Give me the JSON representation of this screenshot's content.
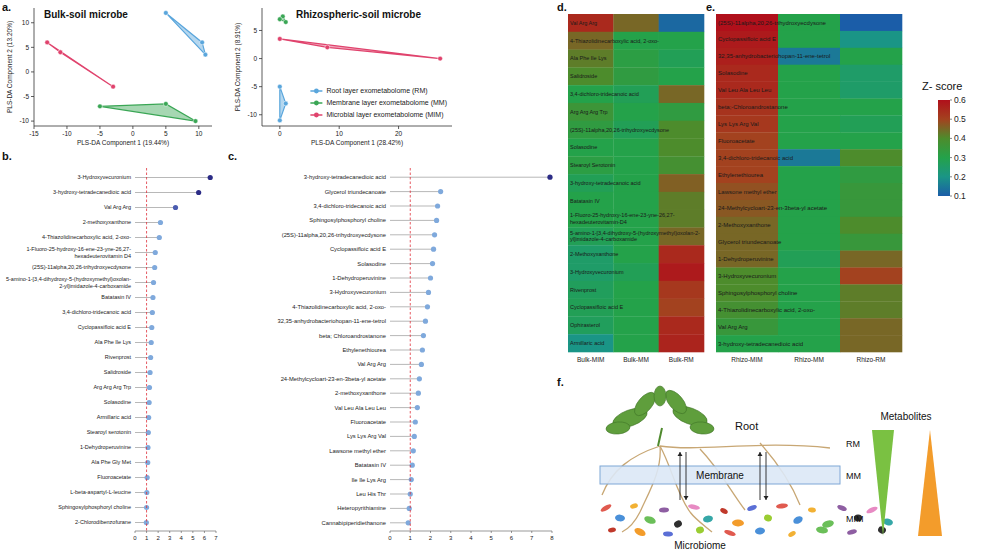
{
  "chart_data": [
    {
      "type": "scatter",
      "panel": "a.",
      "title": "Bulk-soil microbe",
      "x_label": "PLS-DA Component 1 (19.44%)",
      "y_label": "PLS-DA Component 2 (13.20%)",
      "xlim": [
        -15,
        12
      ],
      "ylim": [
        -11,
        13
      ],
      "xticks": [
        -15,
        -10,
        -5,
        0,
        5,
        10
      ],
      "yticks": [
        -10,
        -5,
        0,
        5,
        10
      ],
      "series": [
        {
          "color": "#5aa6dc",
          "x": [
            5,
            10.5,
            11
          ],
          "values": [
            12,
            6,
            3.5
          ]
        },
        {
          "color": "#3aa655",
          "x": [
            -5,
            5,
            9.5
          ],
          "values": [
            -7,
            -6.5,
            -10
          ]
        },
        {
          "color": "#e0436d",
          "x": [
            -13,
            -11,
            -3
          ],
          "values": [
            6,
            4,
            -3
          ]
        }
      ]
    },
    {
      "type": "scatter",
      "title": "Rhizospheric-soil microbe",
      "x_label": "PLS-DA Component 1 (28.42%)",
      "y_label": "PLS-DA Component 2 (8.91%)",
      "xlim": [
        -3,
        29
      ],
      "ylim": [
        -12,
        9
      ],
      "xticks": [
        0,
        10,
        20
      ],
      "yticks": [
        -10,
        -5,
        0,
        5
      ],
      "legend": "lower right",
      "series": [
        {
          "name": "Root layer exometabolome (RM)",
          "color": "#5aa6dc",
          "x": [
            0,
            1,
            0
          ],
          "values": [
            -5,
            -8,
            -11
          ]
        },
        {
          "name": "Membrane layer exometabolome (MM)",
          "color": "#3aa655",
          "x": [
            0.5,
            1,
            0
          ],
          "values": [
            7.5,
            6.5,
            7
          ]
        },
        {
          "name": "Microbial layer exometabolome (MIM)",
          "color": "#e0436d",
          "x": [
            0,
            8,
            27
          ],
          "values": [
            3.5,
            2,
            0
          ]
        }
      ]
    },
    {
      "type": "lollipop",
      "panel": "b.",
      "orientation": "horizontal",
      "categories": [
        "3-Hydroxyvecuronium",
        "3-hydroxy-tetradecanedioic acid",
        "Val Arg Arg",
        "2-methoxyxanthone",
        "4-Thiazolidinecarboxylic acid, 2-oxo-",
        "1-Fluoro-25-hydroxy-16-ene-23-yne-26,27-hexadeuterovitamin D4",
        "(25S)-11alpha,20,26-trihydroxyecdysone",
        "5-amino-1-[3,4-dihydroxy-5-(hydroxymethyl)oxolan-2-yl]imidazole-4-carboxamide",
        "Batatasin IV",
        "3,4-dichloro-tridecanoic acid",
        "Cyclopassifloic acid E",
        "Ala Phe Ile Lys",
        "Rivenprost",
        "Salidroside",
        "Arg Arg Arg Trp",
        "Solasodine",
        "Armillaric acid",
        "Stearoyl serotonin",
        "1-Dehydroperuvinine",
        "Ala Phe Gly Met",
        "Fluoroacetate",
        "L-beta-aspartyl-L-leucine",
        "Sphingosylphosphoryl choline",
        "2-Chlorodibenzofurane"
      ],
      "values": [
        6.5,
        5.5,
        3.5,
        2.2,
        2.1,
        1.75,
        1.7,
        1.6,
        1.55,
        1.5,
        1.45,
        1.4,
        1.35,
        1.3,
        1.25,
        1.22,
        1.18,
        1.15,
        1.12,
        1.1,
        1.05,
        1.02,
        1.0,
        0.98
      ],
      "xlim": [
        0,
        7
      ],
      "xticks": [
        0,
        1,
        2,
        3,
        4,
        5,
        6,
        7
      ],
      "reference_line": 1
    },
    {
      "type": "lollipop",
      "panel": "c.",
      "orientation": "horizontal",
      "categories": [
        "3-hydroxy-tetradecanedioic acid",
        "Glycerol triundecanoate",
        "3,4-dichloro-tridecanoic acid",
        "Sphingosylphosphoryl choline",
        "(25S)-11alpha,20,26-trihydroxyecdysone",
        "Cyclopassifloic acid E",
        "Solasodine",
        "1-Dehydroperuvinine",
        "3-Hydroxyvecuronium",
        "4-Thiazolidinecarboxylic acid, 2-oxo-",
        "32,35-anhydrobacteriohopan-11-ene-tetrol",
        "beta; Chloroandrostanone",
        "Ethylenethiourea",
        "Val Arg Arg",
        "24-Methylcycloart-23-en-3beta-yl acetate",
        "2-methoxyxanthone",
        "Val Leu Ala Leu Leu",
        "Fluoroacetate",
        "Lys Lys Arg Val",
        "Lawsone methyl ether",
        "Batatasin IV",
        "Ile Ile Lys Arg",
        "Leu His Thr",
        "Heteropyrithiamine",
        "Cannabipiperidiethanone"
      ],
      "values": [
        7.9,
        2.5,
        2.35,
        2.3,
        2.2,
        2.15,
        2.1,
        2.0,
        1.9,
        1.85,
        1.75,
        1.65,
        1.6,
        1.55,
        1.45,
        1.4,
        1.35,
        1.25,
        1.2,
        1.15,
        1.1,
        1.05,
        1.0,
        0.95,
        0.9
      ],
      "xlim": [
        0,
        8
      ],
      "xticks": [
        0,
        1,
        2,
        3,
        4,
        5,
        6,
        7,
        8
      ],
      "reference_line": 1
    },
    {
      "type": "heatmap",
      "panel": "d.",
      "x": [
        "Bulk-MIM",
        "Bulk-MM",
        "Bulk-RM"
      ],
      "y": [
        "Val Arg Arg",
        "4-Thiazolidinecarboxylic acid, 2-oxo-",
        "Ala Phe Ile Lys",
        "Salidroside",
        "3,4-dichloro-tridecanoic acid",
        "Arg Arg Arg Trp",
        "(25S)-11alpha,20,26-trihydroxyecdysone",
        "Solasodine",
        "Stearoyl Serotonin",
        "3-hydroxy-tetradecanoic acid",
        "Batatasin IV",
        "1-Fluoro-25-hydroxy-16-ene-23-yne-26,27-hexadeuterovitamin-D4",
        "5-amino-1-[3,4-dihydroxy-5-(hydroxymethyl)oxolan-2-yl]imidazole-4-carboxamide",
        "2-Methoxyxanthone",
        "3-Hydroxyvecuronium",
        "Rivenprost",
        "Cyclopassifloic acid E",
        "Ophirasterol",
        "Armillaric acid"
      ],
      "values": [
        [
          0.55,
          0.45,
          0.12
        ],
        [
          0.45,
          0.3,
          0.3
        ],
        [
          0.42,
          0.32,
          0.28
        ],
        [
          0.4,
          0.33,
          0.3
        ],
        [
          0.3,
          0.28,
          0.45
        ],
        [
          0.36,
          0.3,
          0.33
        ],
        [
          0.33,
          0.28,
          0.4
        ],
        [
          0.3,
          0.3,
          0.4
        ],
        [
          0.32,
          0.3,
          0.38
        ],
        [
          0.28,
          0.3,
          0.46
        ],
        [
          0.3,
          0.3,
          0.42
        ],
        [
          0.3,
          0.3,
          0.42
        ],
        [
          0.28,
          0.3,
          0.45
        ],
        [
          0.25,
          0.3,
          0.55
        ],
        [
          0.25,
          0.28,
          0.58
        ],
        [
          0.27,
          0.3,
          0.52
        ],
        [
          0.28,
          0.3,
          0.5
        ],
        [
          0.27,
          0.3,
          0.55
        ],
        [
          0.2,
          0.3,
          0.56
        ]
      ]
    },
    {
      "type": "heatmap",
      "panel": "e.",
      "x": [
        "Rhizo-MIM",
        "Rhizo-MM",
        "Rhizo-RM"
      ],
      "y": [
        "(25S)-11alpha,20,26-trihydroxyecdysone",
        "Cyclopassifloic acid E",
        "32,35-anhydrobacteriohopan-11-ene-tetrol",
        "Solasodine",
        "Val Leu Ala Leu Leu",
        "beta;-Chloroandrostanone",
        "Lys Lys Arg Val",
        "Fluoroacetate",
        "3,4-dichloro-tridecanoic acid",
        "Ethylenethiourea",
        "Lawsone methyl ether",
        "24-Methylcycloart-23-en-3beta-yl acetate",
        "2-Methoxyxanthone",
        "Glycerol triundecanoate",
        "1-Dehydroperuvinine",
        "3-Hydroxyvecuronium",
        "Sphingosylphosphoryl choline",
        "4-Thiazolidinecarboxylic acid, 2-oxo-",
        "Val Arg Arg",
        "3-hydroxy-tetradecanedioic acid"
      ],
      "values": [
        [
          0.6,
          0.3,
          0.1
        ],
        [
          0.58,
          0.3,
          0.2
        ],
        [
          0.57,
          0.15,
          0.3
        ],
        [
          0.55,
          0.3,
          0.25
        ],
        [
          0.55,
          0.3,
          0.25
        ],
        [
          0.53,
          0.3,
          0.3
        ],
        [
          0.52,
          0.3,
          0.28
        ],
        [
          0.5,
          0.3,
          0.3
        ],
        [
          0.5,
          0.15,
          0.4
        ],
        [
          0.5,
          0.3,
          0.33
        ],
        [
          0.48,
          0.3,
          0.35
        ],
        [
          0.47,
          0.3,
          0.35
        ],
        [
          0.45,
          0.3,
          0.4
        ],
        [
          0.45,
          0.3,
          0.35
        ],
        [
          0.45,
          0.28,
          0.45
        ],
        [
          0.4,
          0.3,
          0.5
        ],
        [
          0.4,
          0.3,
          0.42
        ],
        [
          0.38,
          0.3,
          0.42
        ],
        [
          0.35,
          0.3,
          0.45
        ],
        [
          0.3,
          0.3,
          0.45
        ]
      ],
      "colorbar": {
        "title": "Z- score",
        "range": [
          0.1,
          0.6
        ],
        "ticks": [
          0.1,
          0.2,
          0.3,
          0.4,
          0.5,
          0.6
        ]
      }
    }
  ],
  "diagram": {
    "panel": "f.",
    "root": "Root",
    "membrane": "Membrane",
    "microbiome": "Microbiome",
    "metabolites": "Metabolites",
    "layers": [
      "RM",
      "MM",
      "MIM"
    ]
  }
}
